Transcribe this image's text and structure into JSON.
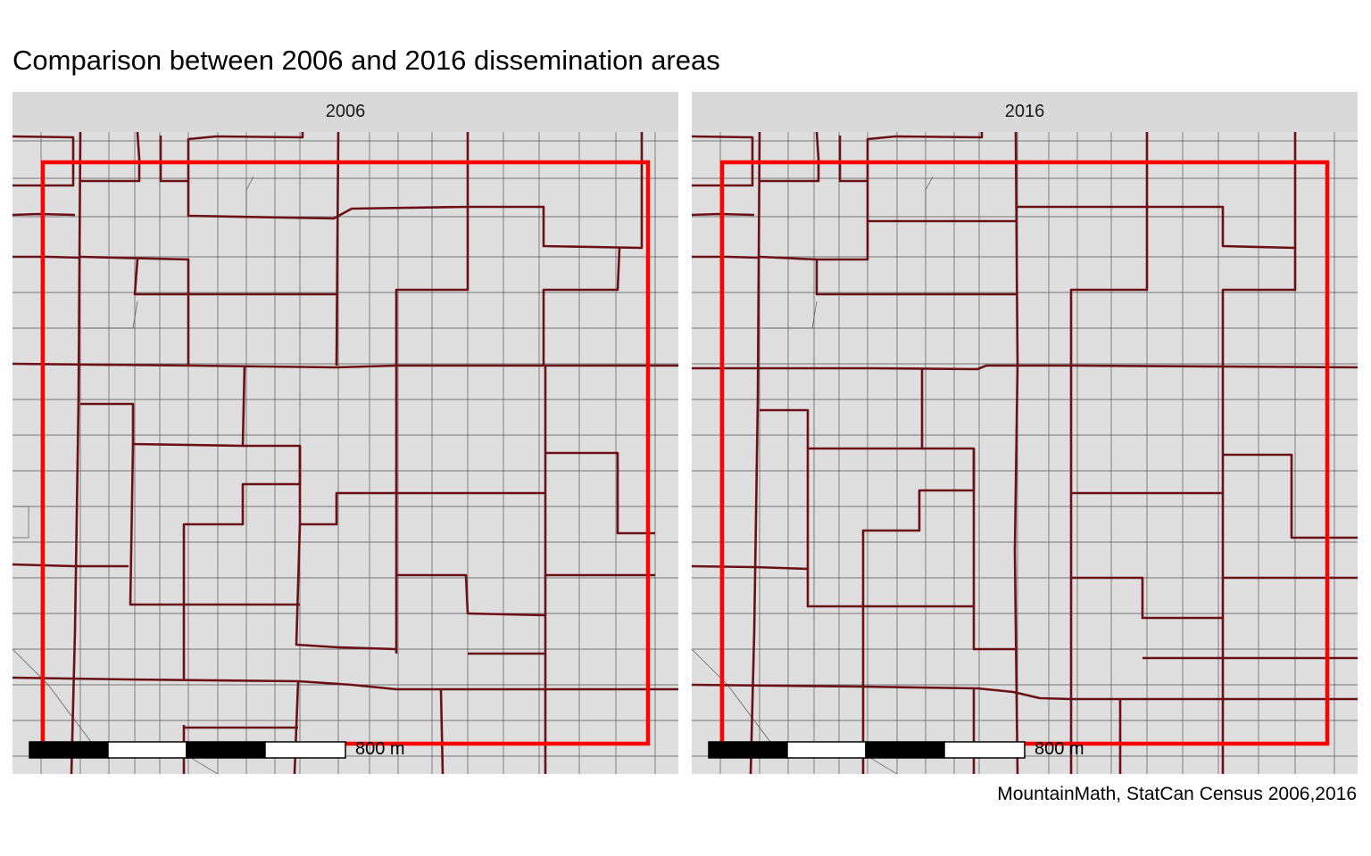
{
  "title": "Comparison between 2006 and 2016 dissemination areas",
  "caption": "MountainMath, StatCan Census 2006,2016",
  "colors": {
    "panel_bg": "#dedede",
    "strip_bg": "#d9d9d9",
    "street_line": "#555555",
    "boundary_line": "#6b1015",
    "highlight_box": "#ff0000"
  },
  "panels": [
    {
      "label": "2006",
      "scale_label": "800 m"
    },
    {
      "label": "2016",
      "scale_label": "800 m"
    }
  ]
}
